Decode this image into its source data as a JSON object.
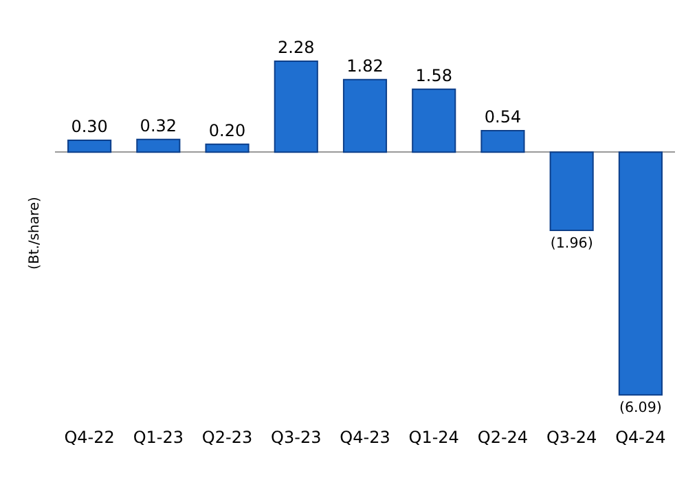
{
  "chart_data": {
    "type": "bar",
    "ylabel": "(Bt./share)",
    "categories": [
      "Q4-22",
      "Q1-23",
      "Q2-23",
      "Q3-23",
      "Q4-23",
      "Q1-24",
      "Q2-24",
      "Q3-24",
      "Q4-24"
    ],
    "values": [
      0.3,
      0.32,
      0.2,
      2.28,
      1.82,
      1.58,
      0.54,
      -1.96,
      -6.09
    ],
    "value_labels": [
      "0.30",
      "0.32",
      "0.20",
      "2.28",
      "1.82",
      "1.58",
      "0.54",
      "(1.96)",
      "(6.09)"
    ],
    "color": "#1f6fd0"
  }
}
